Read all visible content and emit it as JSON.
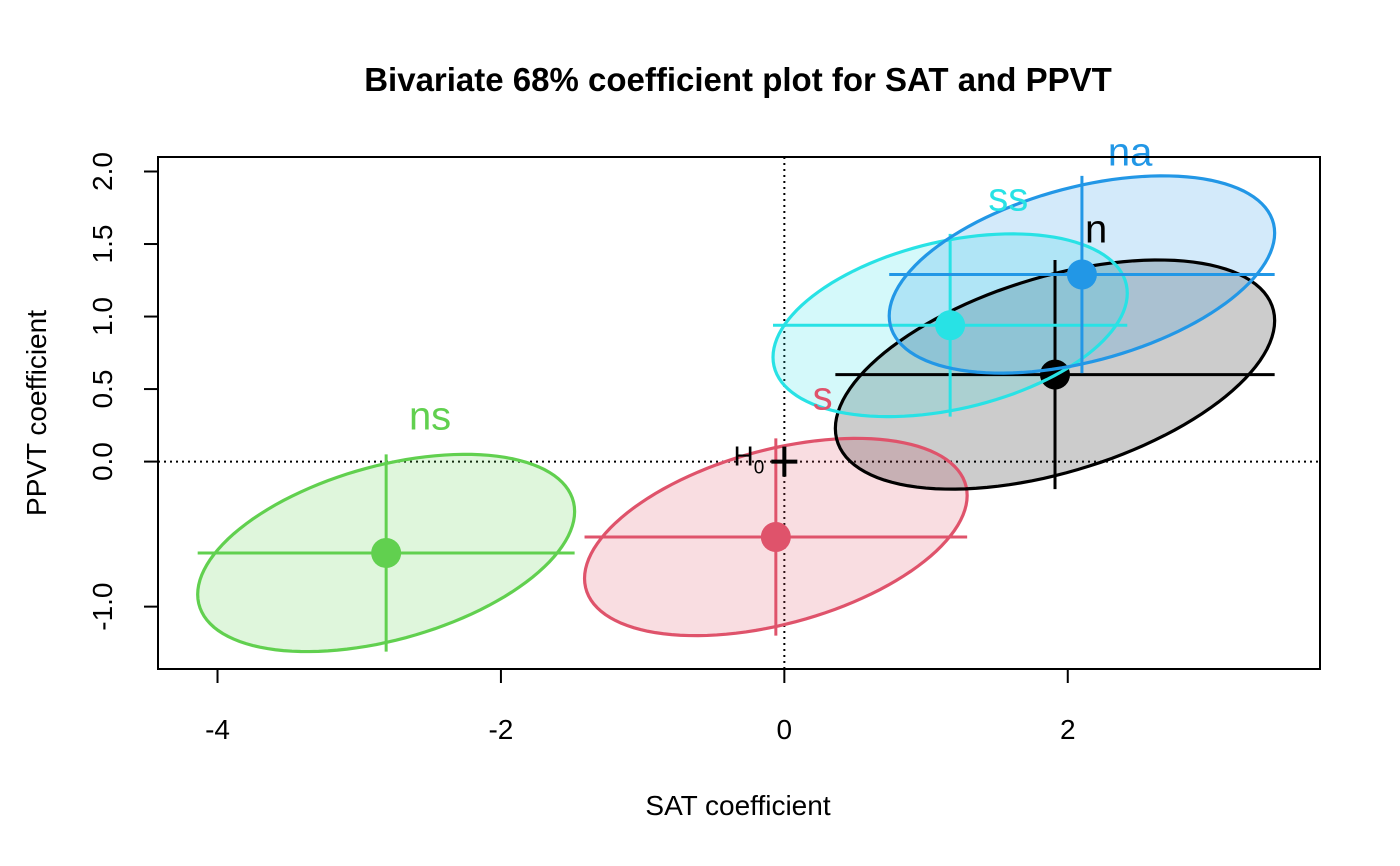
{
  "chart_data": {
    "type": "scatter",
    "title": "Bivariate 68% coefficient plot for SAT and PPVT",
    "xlabel": "SAT coefficient",
    "ylabel": "PPVT coefficient",
    "xlim": [
      -4.42,
      3.78
    ],
    "ylim": [
      -1.43,
      2.1
    ],
    "xticks": [
      -4,
      -2,
      0,
      2
    ],
    "xtick_labels": [
      "-4",
      "-2",
      "0",
      "2"
    ],
    "yticks": [
      -1.0,
      0.0,
      0.5,
      1.0,
      1.5,
      2.0
    ],
    "ytick_labels": [
      "-1.0",
      "0.0",
      "0.5",
      "1.0",
      "1.5",
      "2.0"
    ],
    "reference_lines": {
      "x": 0,
      "y": 0,
      "style": "dotted"
    },
    "origin_marker": {
      "x": 0,
      "y": 0,
      "label": "H",
      "subscript": "0"
    },
    "series": [
      {
        "name": "ns",
        "color": "#61D04F",
        "fill_opacity": 0.2,
        "center": [
          -2.81,
          -0.63
        ],
        "ellipse": {
          "x_half_range": 1.33,
          "y_half_range": 0.68,
          "rho": 0.42
        },
        "x_interval": [
          -4.14,
          -1.48
        ],
        "y_interval": [
          -1.31,
          0.05
        ],
        "label_pos": [
          -2.5,
          0.22
        ]
      },
      {
        "name": "s",
        "color": "#DF536B",
        "fill_opacity": 0.2,
        "center": [
          -0.06,
          -0.52
        ],
        "ellipse": {
          "x_half_range": 1.35,
          "y_half_range": 0.68,
          "rho": 0.42
        },
        "x_interval": [
          -1.41,
          1.29
        ],
        "y_interval": [
          -1.2,
          0.16
        ],
        "label_pos": [
          0.27,
          0.36
        ]
      },
      {
        "name": "n",
        "color": "#000000",
        "fill_opacity": 0.2,
        "center": [
          1.91,
          0.6
        ],
        "ellipse": {
          "x_half_range": 1.55,
          "y_half_range": 0.79,
          "rho": 0.47
        },
        "x_interval": [
          0.36,
          3.46
        ],
        "y_interval": [
          -0.19,
          1.39
        ],
        "label_pos": [
          2.2,
          1.51
        ]
      },
      {
        "name": "ss",
        "color": "#28E2E5",
        "fill_opacity": 0.2,
        "center": [
          1.17,
          0.94
        ],
        "ellipse": {
          "x_half_range": 1.25,
          "y_half_range": 0.63,
          "rho": 0.35
        },
        "x_interval": [
          -0.08,
          2.42
        ],
        "y_interval": [
          0.31,
          1.57
        ],
        "label_pos": [
          1.58,
          1.73
        ]
      },
      {
        "name": "na",
        "color": "#2297E6",
        "fill_opacity": 0.2,
        "center": [
          2.1,
          1.29
        ],
        "ellipse": {
          "x_half_range": 1.36,
          "y_half_range": 0.68,
          "rho": 0.42
        },
        "x_interval": [
          0.74,
          3.46
        ],
        "y_interval": [
          0.61,
          1.97
        ],
        "label_pos": [
          2.44,
          2.04
        ]
      }
    ]
  }
}
